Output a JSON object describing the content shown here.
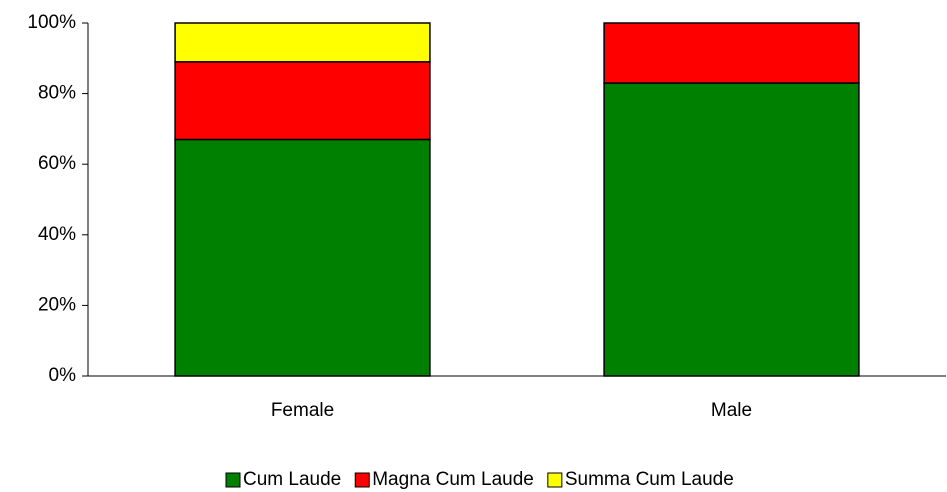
{
  "chart_data": {
    "type": "stacked_bar",
    "categories": [
      "Female",
      "Male"
    ],
    "series": [
      {
        "name": "Cum Laude",
        "color": "#008000",
        "values": [
          67,
          83
        ]
      },
      {
        "name": "Magna Cum Laude",
        "color": "#ff0000",
        "values": [
          22,
          17
        ]
      },
      {
        "name": "Summa Cum Laude",
        "color": "#ffff00",
        "values": [
          11,
          0
        ]
      }
    ],
    "ylim": [
      0,
      100
    ],
    "yticks": [
      {
        "value": 0,
        "label": "0%"
      },
      {
        "value": 20,
        "label": "20%"
      },
      {
        "value": 40,
        "label": "40%"
      },
      {
        "value": 60,
        "label": "60%"
      },
      {
        "value": 80,
        "label": "80%"
      },
      {
        "value": 100,
        "label": "100%"
      }
    ],
    "legend": "bottom"
  }
}
